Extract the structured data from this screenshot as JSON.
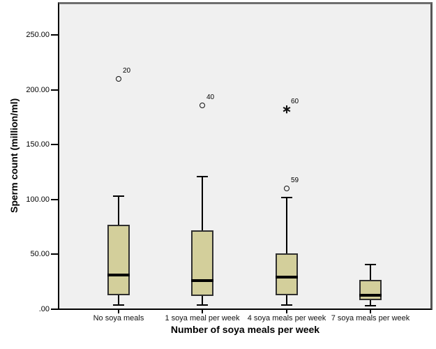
{
  "figure": {
    "y_axis_title": "Sperm count (million/ml)",
    "x_axis_title": "Number of soya meals per week"
  },
  "chart_data": {
    "type": "boxplot",
    "title": "",
    "xlabel": "Number of soya meals per week",
    "ylabel": "Sperm count (million/ml)",
    "ylim": [
      0,
      280
    ],
    "grid": false,
    "panel_bg": "#f0f0f0",
    "box_fill": "#d3cf9b",
    "yticks": [
      {
        "value": 0,
        "label": ".00"
      },
      {
        "value": 50,
        "label": "50.00"
      },
      {
        "value": 100,
        "label": "100.00"
      },
      {
        "value": 150,
        "label": "150.00"
      },
      {
        "value": 200,
        "label": "200.00"
      },
      {
        "value": 250,
        "label": "250.00"
      }
    ],
    "categories": [
      "No soya meals",
      "1 soya meal per week",
      "4 soya meals per week",
      "7 soya meals per week"
    ],
    "series": [
      {
        "category": "No soya meals",
        "whisker_low": 4,
        "q1": 13,
        "median": 31,
        "q3": 77,
        "whisker_high": 103,
        "outliers": [
          {
            "label": "20",
            "value": 210,
            "marker": "circle"
          }
        ]
      },
      {
        "category": "1 soya meal per week",
        "whisker_low": 4,
        "q1": 12,
        "median": 26,
        "q3": 72,
        "whisker_high": 121,
        "outliers": [
          {
            "label": "40",
            "value": 186,
            "marker": "circle"
          }
        ]
      },
      {
        "category": "4 soya meals per week",
        "whisker_low": 4,
        "q1": 13,
        "median": 29,
        "q3": 51,
        "whisker_high": 102,
        "outliers": [
          {
            "label": "59",
            "value": 110,
            "marker": "circle"
          },
          {
            "label": "60",
            "value": 182,
            "marker": "star"
          }
        ]
      },
      {
        "category": "7 soya meals per week",
        "whisker_low": 3,
        "q1": 8,
        "median": 13,
        "q3": 27,
        "whisker_high": 41,
        "outliers": []
      }
    ]
  }
}
